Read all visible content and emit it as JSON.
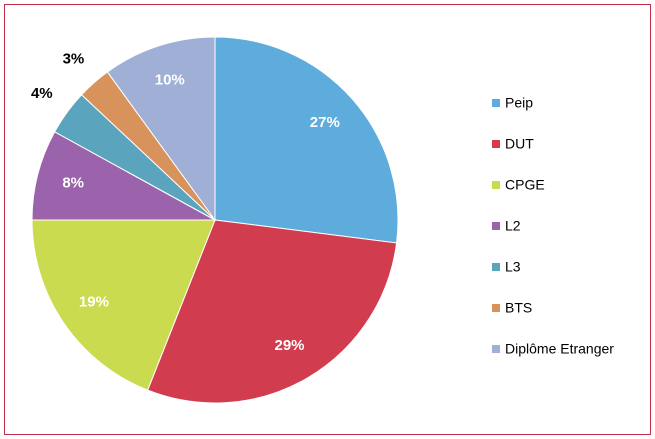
{
  "chart_data": {
    "type": "pie",
    "categories": [
      "Peip",
      "DUT",
      "CPGE",
      "L2",
      "L3",
      "BTS",
      "Diplôme Etranger"
    ],
    "values": [
      27,
      29,
      19,
      8,
      4,
      3,
      10
    ],
    "value_labels": [
      "27%",
      "29%",
      "19%",
      "8%",
      "4%",
      "3%",
      "10%"
    ],
    "colors": [
      "#5eacdc",
      "#d13c4f",
      "#cbdb4f",
      "#9b63ab",
      "#5ba4be",
      "#d8925b",
      "#9fafd6"
    ],
    "legend": "right"
  }
}
